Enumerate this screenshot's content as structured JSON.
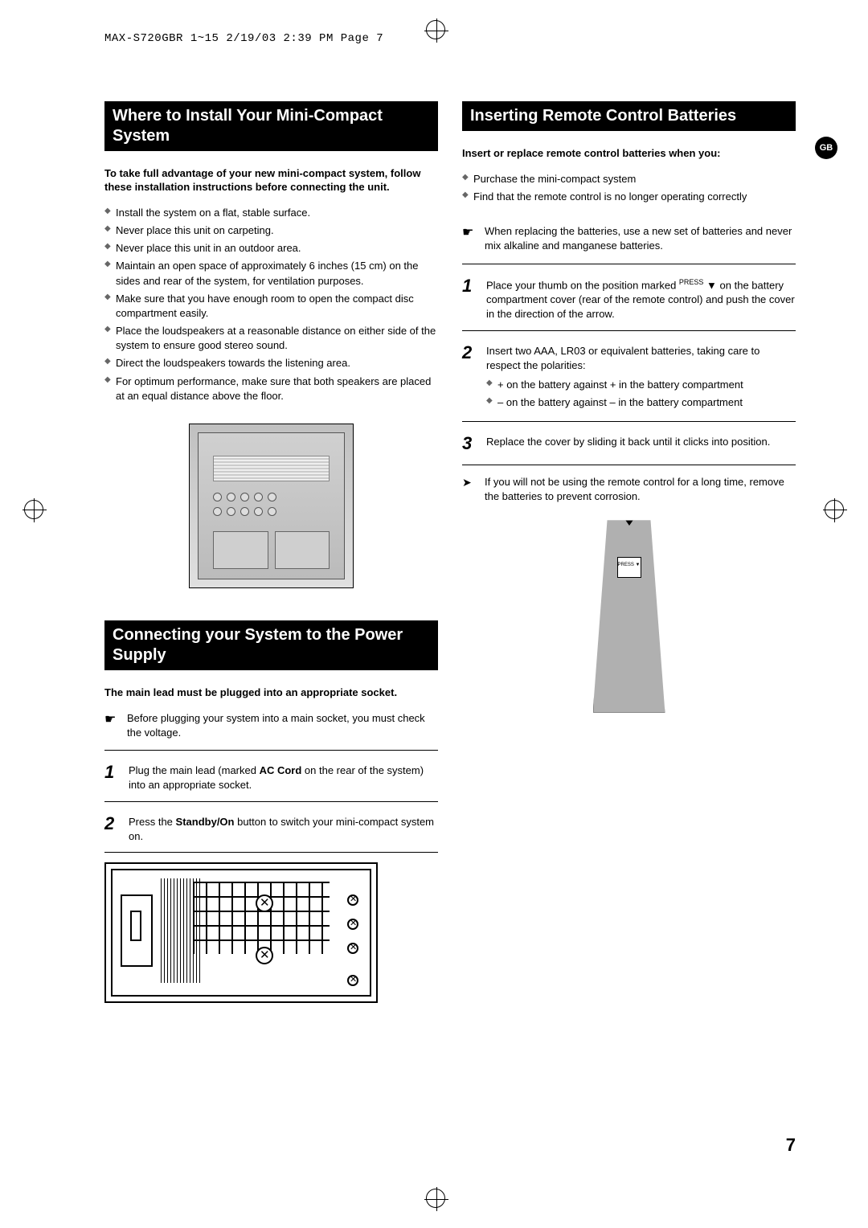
{
  "header": {
    "text": "MAX-S720GBR 1~15  2/19/03 2:39 PM  Page 7"
  },
  "badge": "GB",
  "pageNumber": "7",
  "left": {
    "section1": {
      "title": "Where to Install Your Mini-Compact System",
      "intro": "To take full advantage of your new mini-compact system, follow these installation instructions before connecting the unit.",
      "bullets": [
        "Install the system on a flat, stable surface.",
        "Never place this unit on carpeting.",
        "Never place this unit in an outdoor area.",
        "Maintain an open space of approximately 6 inches (15 cm) on the sides and rear of the system, for ventilation purposes.",
        "Make sure that you have enough room to open the compact disc compartment easily.",
        "Place the loudspeakers at a reasonable distance on either side of the system to ensure good stereo sound.",
        "Direct the loudspeakers towards the listening area.",
        "For optimum performance, make sure that both speakers are placed at an equal distance above the floor."
      ]
    },
    "section2": {
      "title": "Connecting your System to the Power Supply",
      "intro": "The main lead must be plugged into an appropriate socket.",
      "note": "Before plugging your system into a main socket, you must check the voltage.",
      "step1_a": "Plug the main lead (marked ",
      "step1_b": "AC Cord",
      "step1_c": " on the rear of the system) into an appropriate socket.",
      "step2_a": "Press the ",
      "step2_b": "Standby/On",
      "step2_c": " button to switch your mini-compact system on."
    }
  },
  "right": {
    "section1": {
      "title": "Inserting Remote Control Batteries",
      "intro": "Insert or replace remote control batteries when you:",
      "bullets": [
        "Purchase the mini-compact system",
        "Find that the remote control is no longer operating correctly"
      ],
      "note": "When replacing the batteries, use a new set of batteries and never mix alkaline and manganese batteries.",
      "step1_a": "Place your thumb on the position marked ",
      "step1_tag": "PRESS",
      "step1_b": " on the battery compartment cover (rear of the remote control) and push the cover in the direction of the arrow.",
      "step2": "Insert two AAA, LR03 or equivalent batteries, taking care to respect the polarities:",
      "step2_sub": [
        "+ on the battery against + in the battery compartment",
        "– on the battery against – in the battery compartment"
      ],
      "step3": "Replace the cover by sliding it back until it clicks into position.",
      "finalNote": "If you will not be using the remote control for a long time, remove the batteries to prevent corrosion.",
      "pressLabel": "PRESS\n▼"
    }
  }
}
